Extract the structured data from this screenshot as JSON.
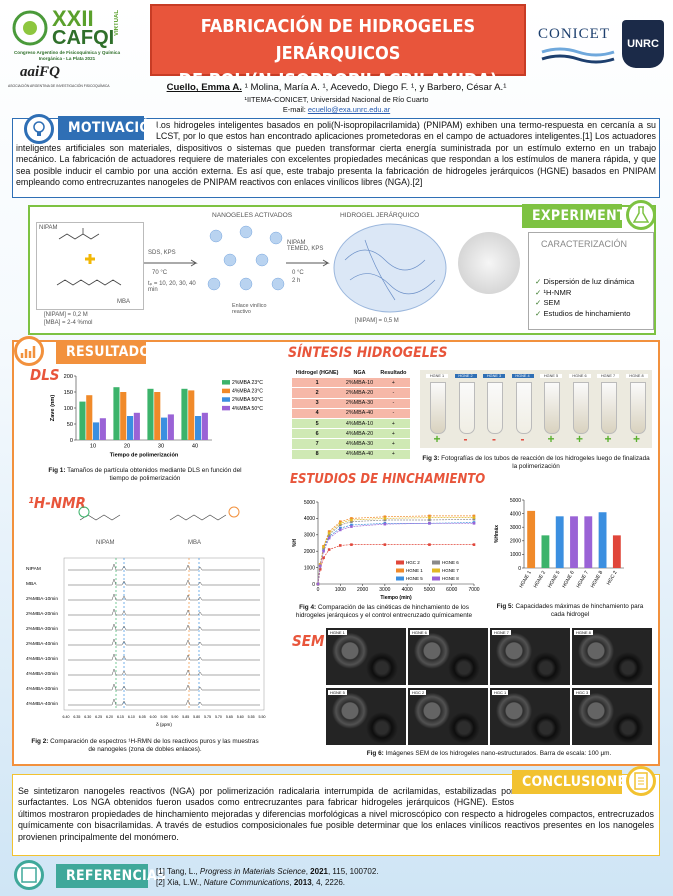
{
  "header": {
    "conference": {
      "edition": "XXII",
      "name": "CAFQI",
      "virtual": "VIRTUAL",
      "subtitle": "Congreso Argentino de Fisicoquímica y Química Inorgánica - La Plata 2021",
      "org": "aaiFQ",
      "org_full": "ASOCIACIÓN ARGENTINA DE INVESTIGACIÓN FISICOQUÍMICA"
    },
    "title": [
      "FABRICACIÓN DE HIDROGELES JERÁRQUICOS",
      "DE POLI(N-ISOPROPILACRILAMIDA)"
    ],
    "logos": {
      "conicet": "CONICET",
      "unrc": "UNRC"
    },
    "presenter": "Cuello, Emma A.",
    "coauthors": "¹ Molina, María A. ¹, Acevedo, Diego F. ¹, y Barbero, César A.¹",
    "affiliation": "¹IITEMA-CONICET, Universidad Nacional de Río Cuarto",
    "email_label": "E-mail:",
    "email": "ecuello@exa.unrc.edu.ar"
  },
  "motivation": {
    "heading": "MOTIVACIÓN",
    "text": "Los hidrogeles inteligentes basados en poli(N-isopropilacrilamida) (PNIPAM) exhiben una termo-respuesta en cercanía a su LCST, por lo que estos han encontrado aplicaciones prometedoras en el campo de actuadores inteligentes.[1] Los actuadores inteligentes artificiales son materiales, dispositivos o sistemas que pueden transformar cierta energía suministrada por un estímulo externo en un trabajo mecánico. La fabricación de actuadores requiere de materiales con excelentes propiedades mecánicas que respondan a los estímulos de manera rápida, y que sea posible inducir el cambio por una acción externa. Es así que, este trabajo presenta la fabricación de hidrogeles jerárquicos (HGNE) basados en PNIPAM empleando como entrecruzantes nanogeles de PNIPAM reactivos con enlaces vinílicos libres (NGA).[2]"
  },
  "experimental": {
    "heading": "EXPERIMENTAL",
    "nipam": "NIPAM",
    "mba": "MBA",
    "conc1": "[NIPAM] = 0,2 M",
    "conc2": "[MBA] = 2-4 %mol",
    "step1_reagents": "SDS, KPS",
    "step1_temp": "70 °C",
    "step1_time": "tₚ = 10, 20, 30, 40 min",
    "nanogels": "NANOGELES ACTIVADOS",
    "vinyl": "Enlace vinílico reactivo",
    "step2_reagents": "NIPAM TEMED, KPS",
    "step2_temp": "0 °C",
    "step2_time": "2 h",
    "hydrogel": "HIDROGEL JERÁRQUICO",
    "conc3": "[NIPAM] = 0,5 M",
    "characterization_heading": "CARACTERIZACIÓN",
    "characterization": [
      "Dispersión de luz dinámica",
      "¹H-NMR",
      "SEM",
      "Estudios de hinchamiento"
    ]
  },
  "results": {
    "heading": "RESULTADOS",
    "dls": {
      "label": "DLS",
      "caption_label": "Fig 1:",
      "caption": "Tamaños de partícula obtenidos mediante DLS en función del tiempo de polimerización",
      "chart_data": {
        "type": "bar",
        "y_label": "Zave (nm)",
        "x_label": "Tiempo de polimerización",
        "categories": [
          "10",
          "20",
          "30",
          "40"
        ],
        "ylim": [
          0,
          200
        ],
        "yticks": [
          0,
          50,
          100,
          150,
          200
        ],
        "series": [
          {
            "name": "2%MBA 23°C",
            "color": "#3cb36b",
            "values": [
              120,
              165,
              160,
              160
            ]
          },
          {
            "name": "4%MBA 23°C",
            "color": "#f08a2a",
            "values": [
              140,
              150,
              150,
              155
            ]
          },
          {
            "name": "2%MBA 50°C",
            "color": "#3b8fe0",
            "values": [
              55,
              75,
              70,
              75
            ]
          },
          {
            "name": "4%MBA 50°C",
            "color": "#9a63d6",
            "values": [
              68,
              85,
              80,
              85
            ]
          }
        ]
      }
    },
    "nmr": {
      "label": "¹H-NMR",
      "nipam": "NIPAM",
      "mba": "MBA",
      "traces": [
        "NIPAM",
        "MBA",
        "2%MBA-10min",
        "2%MBA-20min",
        "2%MBA-30min",
        "2%MBA-40min",
        "4%MBA-10min",
        "4%MBA-20min",
        "4%MBA-30min",
        "4%MBA-40min"
      ],
      "axis_labels": [
        "6.40",
        "6.35",
        "6.30",
        "6.25",
        "6.20",
        "6.15",
        "6.10",
        "6.05",
        "6.00",
        "5.95",
        "5.90",
        "5.85",
        "5.80",
        "5.75",
        "5.70",
        "5.65",
        "5.60",
        "5.55",
        "5.50"
      ],
      "axis_title": "δ (ppm)",
      "caption_label": "Fig 2:",
      "caption": "Comparación de espectros ¹H-RMN de los reactivos puros y las muestras de nanogeles (zona de dobles enlaces)."
    },
    "synthesis": {
      "heading": "SÍNTESIS HIDROGELES",
      "columns": [
        "Hidrogel (HGNE)",
        "NGA",
        "Resultado"
      ],
      "rows": [
        [
          "1",
          "2%MBA-10",
          "+"
        ],
        [
          "2",
          "2%MBA-20",
          "-"
        ],
        [
          "3",
          "2%MBA-30",
          "-"
        ],
        [
          "4",
          "2%MBA-40",
          "-"
        ],
        [
          "5",
          "4%MBA-10",
          "+"
        ],
        [
          "6",
          "4%MBA-20",
          "+"
        ],
        [
          "7",
          "4%MBA-30",
          "+"
        ],
        [
          "8",
          "4%MBA-40",
          "+"
        ]
      ],
      "tubes": [
        "HGNE 1",
        "HGNE 2",
        "HGNE 3",
        "HGNE 4",
        "HGNE 5",
        "HGNE 6",
        "HGNE 7",
        "HGNE 8"
      ],
      "tube_results": [
        "+",
        "-",
        "-",
        "-",
        "+",
        "+",
        "+",
        "+"
      ],
      "caption_label": "Fig 3:",
      "caption": "Fotografías de los tubos de reacción de los hidrogeles luego de finalizada la polimerización"
    },
    "swelling": {
      "heading": "ESTUDIOS DE HINCHAMIENTO",
      "kinetics": {
        "chart_data": {
          "type": "line",
          "y_label": "%H",
          "x_label": "Tiempo (min)",
          "x": [
            0,
            100,
            250,
            500,
            1000,
            1500,
            3000,
            5000,
            7000
          ],
          "xlim": [
            0,
            7000
          ],
          "xticks": [
            0,
            1000,
            2000,
            3000,
            4000,
            5000,
            6000,
            7000
          ],
          "ylim": [
            0,
            5000
          ],
          "yticks": [
            0,
            1000,
            2000,
            3000,
            4000,
            5000
          ],
          "series": [
            {
              "name": "HGC 2",
              "color": "#e0463a",
              "values": [
                0,
                900,
                1600,
                2100,
                2350,
                2400,
                2400,
                2400,
                2400
              ]
            },
            {
              "name": "HGNE 1",
              "color": "#f08a2a",
              "values": [
                0,
                1200,
                2300,
                3200,
                3800,
                4000,
                4100,
                4150,
                4150
              ]
            },
            {
              "name": "HGNE 5",
              "color": "#3b8fe0",
              "values": [
                0,
                1100,
                2100,
                2900,
                3400,
                3600,
                3700,
                3700,
                3750
              ]
            },
            {
              "name": "HGNE 6",
              "color": "#8a8a8a",
              "values": [
                0,
                1150,
                2200,
                3000,
                3600,
                3800,
                3900,
                3900,
                3950
              ]
            },
            {
              "name": "HGNE 7",
              "color": "#e2b824",
              "values": [
                0,
                1180,
                2250,
                3100,
                3700,
                3900,
                4000,
                4050,
                4050
              ]
            },
            {
              "name": "HGNE 8",
              "color": "#9a63d6",
              "values": [
                0,
                1100,
                2000,
                2800,
                3300,
                3500,
                3650,
                3700,
                3700
              ]
            }
          ]
        },
        "caption_label": "Fig 4:",
        "caption": "Comparación de las cinéticas de hinchamiento de los hidrogeles jerárquicos y el control entrecruzado químicamente"
      },
      "maximum": {
        "chart_data": {
          "type": "bar",
          "y_label": "%Hmáx",
          "categories": [
            "HGNE 1",
            "HGNE 2",
            "HGNE 5",
            "HGNE 6",
            "HGNE 7",
            "HGNE 8",
            "HGC 2"
          ],
          "ylim": [
            0,
            5000
          ],
          "yticks": [
            0,
            1000,
            2000,
            3000,
            4000,
            5000
          ],
          "colors": [
            "#f08a2a",
            "#3cb36b",
            "#3b8fe0",
            "#9a63d6",
            "#9a63d6",
            "#3b8fe0",
            "#e0463a"
          ],
          "values": [
            4200,
            2400,
            3800,
            3800,
            3800,
            4100,
            2400
          ]
        },
        "caption_label": "Fig 5:",
        "caption": "Capacidades máximas de hinchamiento para cada hidrogel"
      }
    },
    "sem": {
      "label": "SEM",
      "images": [
        "HGNE 1",
        "HGNE 6",
        "HGNE 7",
        "HGNE 8",
        "HGNE 5",
        "HGC 2",
        "HGC 1",
        "HGC 3"
      ],
      "caption_label": "Fig 6:",
      "caption": "Imágenes SEM de los hidrogeles nano-estructurados. Barra de escala: 100 μm."
    }
  },
  "conclusions": {
    "heading": "CONCLUSIONES",
    "text": "Se sintetizaron nanogeles reactivos (NGA) por polimerización radicalaria interrumpida de acrilamidas, estabilizadas por surfactantes. Los NGA obtenidos fueron usados como entrecruzantes para fabricar hidrogeles jerárquicos (HGNE). Estos últimos mostraron propiedades de hinchamiento mejoradas y diferencias morfológicas a nivel microscópico con respecto a hidrogeles compactos, entrecruzados químicamente con bisacrilamidas. A través de estudios composicionales fue posible determinar que los enlaces vinílicos reactivos presentes en los nanogeles provienen principalmente del monómero."
  },
  "references": {
    "heading": "REFERENCIAS",
    "items": [
      [
        "[1] Tang, L., ",
        "Progress in Materials Science",
        ", ",
        "2021",
        ", 115, 100702."
      ],
      [
        "[2] Xia, L.W., ",
        "Nature Communications",
        ", ",
        "2013",
        ", 4, 2226."
      ]
    ]
  }
}
